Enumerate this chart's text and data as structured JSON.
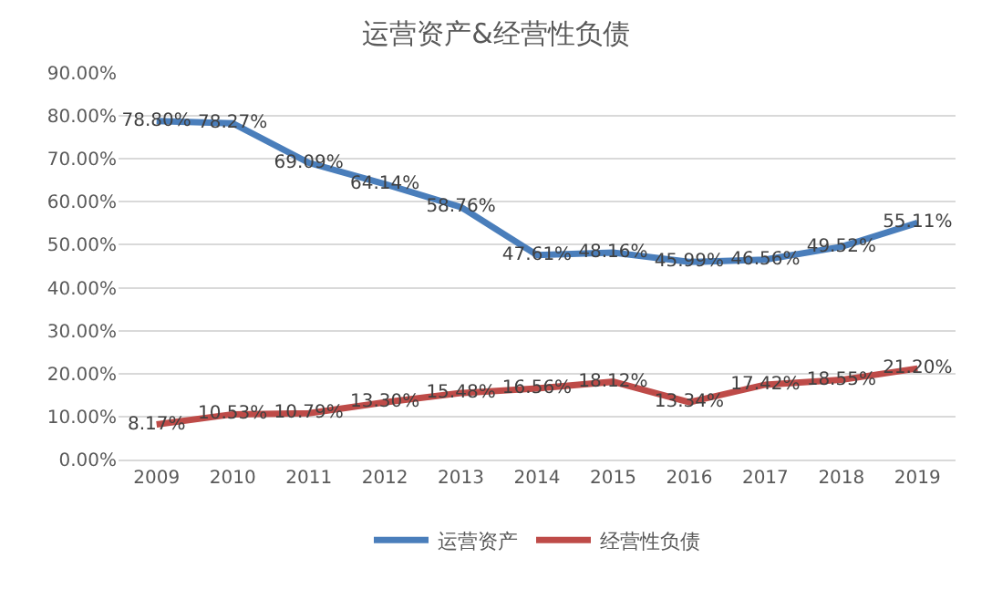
{
  "chart_data": {
    "type": "line",
    "title": "运营资产&经营性负债",
    "categories": [
      "2009",
      "2010",
      "2011",
      "2012",
      "2013",
      "2014",
      "2015",
      "2016",
      "2017",
      "2018",
      "2019"
    ],
    "series": [
      {
        "name": "运营资产",
        "color": "#4a7ebb",
        "values": [
          78.8,
          78.27,
          69.09,
          64.14,
          58.76,
          47.61,
          48.16,
          45.99,
          46.56,
          49.52,
          55.11
        ],
        "value_labels": [
          "78.80%",
          "78.27%",
          "69.09%",
          "64.14%",
          "58.76%",
          "47.61%",
          "48.16%",
          "45.99%",
          "46.56%",
          "49.52%",
          "55.11%"
        ]
      },
      {
        "name": "经营性负债",
        "color": "#be4b48",
        "values": [
          8.17,
          10.53,
          10.79,
          13.3,
          15.48,
          16.56,
          18.12,
          13.34,
          17.42,
          18.55,
          21.2
        ],
        "value_labels": [
          "8.17%",
          "10.53%",
          "10.79%",
          "13.30%",
          "15.48%",
          "16.56%",
          "18.12%",
          "13.34%",
          "17.42%",
          "18.55%",
          "21.20%"
        ]
      }
    ],
    "ylim": [
      0,
      90
    ],
    "yticks": [
      {
        "value": 0,
        "label": "0.00%"
      },
      {
        "value": 10,
        "label": "10.00%"
      },
      {
        "value": 20,
        "label": "20.00%"
      },
      {
        "value": 30,
        "label": "30.00%"
      },
      {
        "value": 40,
        "label": "40.00%"
      },
      {
        "value": 50,
        "label": "50.00%"
      },
      {
        "value": 60,
        "label": "60.00%"
      },
      {
        "value": 70,
        "label": "70.00%"
      },
      {
        "value": 80,
        "label": "80.00%"
      },
      {
        "value": 90,
        "label": "90.00%"
      }
    ],
    "grid": "y",
    "legend": "bottom",
    "marker": "none",
    "line_style": "solid"
  }
}
